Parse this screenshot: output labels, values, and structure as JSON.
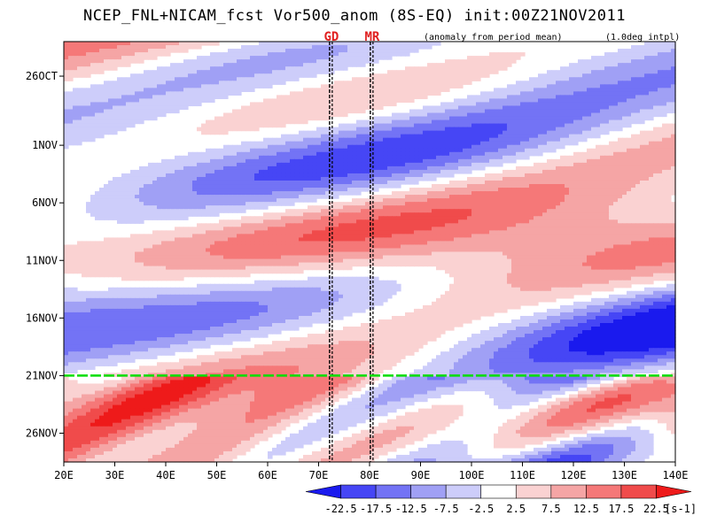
{
  "chart_data": {
    "type": "heatmap",
    "title": "NCEP_FNL+NICAM_fcst Vor500_anom (8S-EQ) init:00Z21NOV2011",
    "subtitle": "(anomaly from period mean)",
    "interpolation_note": "(1.0deg intpl)",
    "x_axis": {
      "ticks": [
        "20E",
        "30E",
        "40E",
        "50E",
        "60E",
        "70E",
        "80E",
        "90E",
        "100E",
        "110E",
        "120E",
        "130E",
        "140E"
      ],
      "range": [
        20,
        140
      ]
    },
    "y_axis": {
      "ticks": [
        "26OCT",
        "1NOV",
        "6NOV",
        "11NOV",
        "16NOV",
        "21NOV",
        "26NOV"
      ],
      "tick_days": [
        0,
        6,
        11,
        16,
        21,
        26,
        31
      ],
      "range_days": [
        -3,
        33.5
      ]
    },
    "markers": [
      {
        "label": "GD",
        "lon": 72.5
      },
      {
        "label": "MR",
        "lon": 80.5
      }
    ],
    "init_line": {
      "day": 26,
      "color": "#00dd00",
      "label": "21NOV"
    },
    "colorbar": {
      "levels": [
        "-22.5",
        "-17.5",
        "-12.5",
        "-7.5",
        "-2.5",
        "2.5",
        "7.5",
        "12.5",
        "17.5",
        "22.5"
      ],
      "units": "[s-1]",
      "colors": [
        "#1a1aee",
        "#4646f5",
        "#7373f5",
        "#a0a0f5",
        "#cdcdfa",
        "#ffffff",
        "#fad2d2",
        "#f5a5a5",
        "#f57878",
        "#f04b4b",
        "#ee1a1a"
      ]
    }
  }
}
